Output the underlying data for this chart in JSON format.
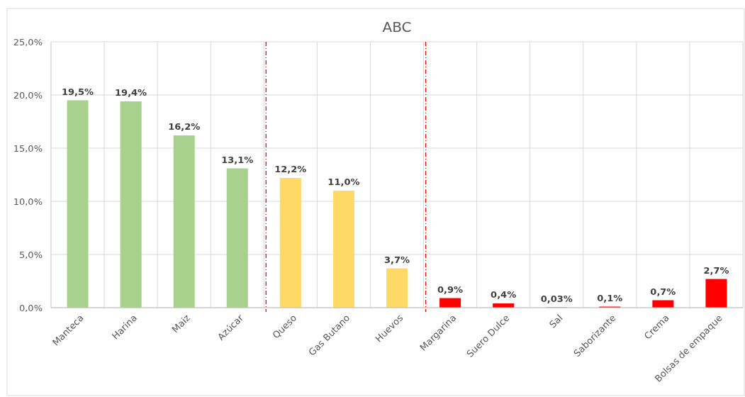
{
  "chart_data": {
    "type": "bar",
    "title": "ABC",
    "categories": [
      "Manteca",
      "Harina",
      "Maiz",
      "Azúcar",
      "Queso",
      "Gas Butano",
      "Huevos",
      "Margarina",
      "Suero Dulce",
      "Sal",
      "Saborizante",
      "Crema",
      "Bolsas de empaque"
    ],
    "values": [
      19.5,
      19.4,
      16.2,
      13.1,
      12.2,
      11.0,
      3.7,
      0.9,
      0.4,
      0.03,
      0.1,
      0.7,
      2.7
    ],
    "colors": [
      "#a9d18e",
      "#a9d18e",
      "#a9d18e",
      "#a9d18e",
      "#ffd966",
      "#ffd966",
      "#ffd966",
      "#ff0000",
      "#ff0000",
      "#ff0000",
      "#ff0000",
      "#ff0000",
      "#ff0000"
    ],
    "value_labels": [
      "19,5%",
      "19,4%",
      "16,2%",
      "13,1%",
      "12,2%",
      "11,0%",
      "3,7%",
      "0,9%",
      "0,4%",
      "0,03%",
      "0,1%",
      "0,7%",
      "2,7%"
    ],
    "ylim": [
      0,
      25
    ],
    "yticks": [
      {
        "value": 0,
        "label": "0,0%"
      },
      {
        "value": 5,
        "label": "5,0%"
      },
      {
        "value": 10,
        "label": "10,0%"
      },
      {
        "value": 15,
        "label": "15,0%"
      },
      {
        "value": 20,
        "label": "20,0%"
      },
      {
        "value": 25,
        "label": "25,0%"
      }
    ],
    "grid": true
  }
}
